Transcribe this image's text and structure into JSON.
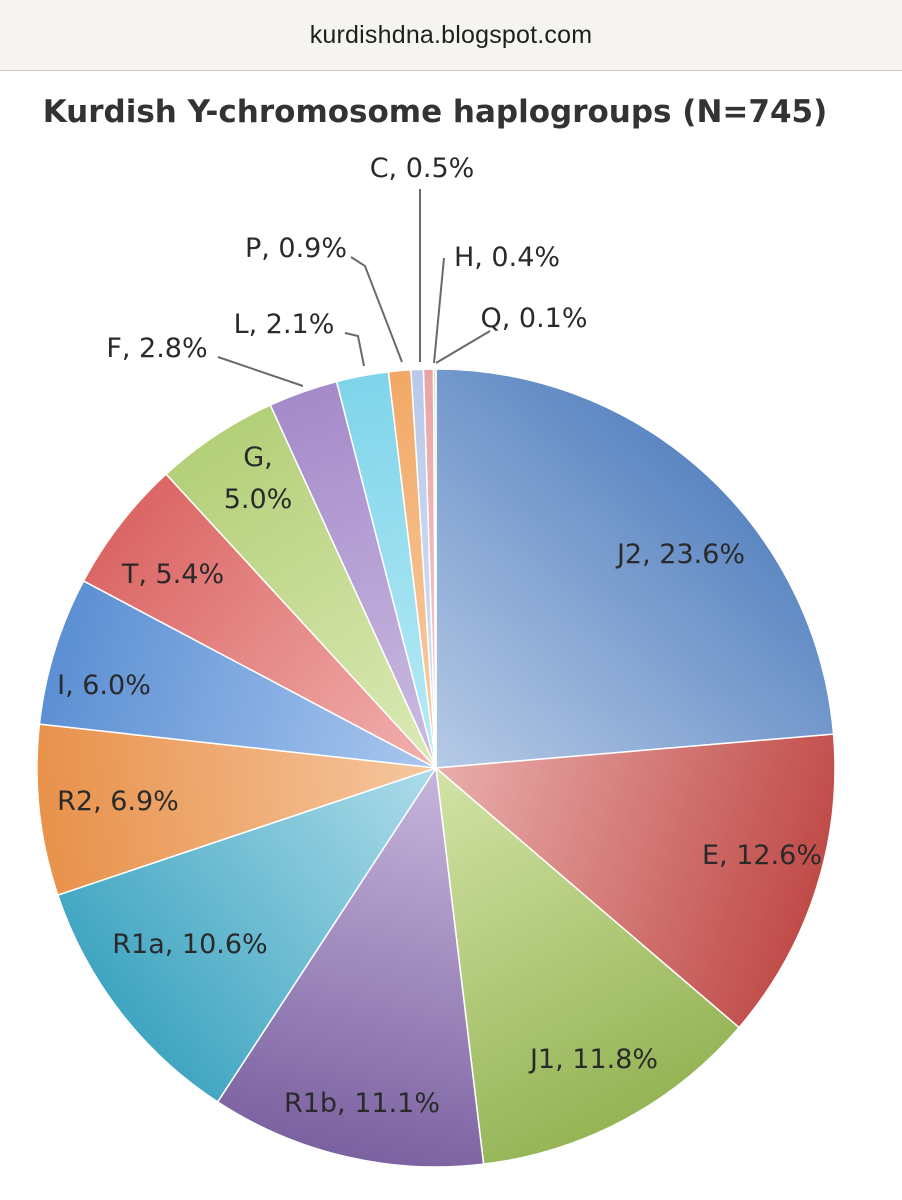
{
  "browser": {
    "url": "kurdishdna.blogspot.com"
  },
  "chart_data": {
    "type": "pie",
    "title": "Kurdish Y-chromosome haplogroups (N=745)",
    "slices": [
      {
        "name": "J2",
        "value": 23.6,
        "label": "J2, 23.6%",
        "color": "#5b86c2",
        "light": "#b6cae6"
      },
      {
        "name": "E",
        "value": 12.6,
        "label": "E, 12.6%",
        "color": "#c04b48",
        "light": "#e9aeac"
      },
      {
        "name": "J1",
        "value": 11.8,
        "label": "J1, 11.8%",
        "color": "#94b455",
        "light": "#d3e3a6"
      },
      {
        "name": "R1b",
        "value": 11.1,
        "label": "R1b, 11.1%",
        "color": "#7b61a0",
        "light": "#c7b6dc"
      },
      {
        "name": "R1a",
        "value": 10.6,
        "label": "R1a, 10.6%",
        "color": "#3fa5c1",
        "light": "#aedcea"
      },
      {
        "name": "R2",
        "value": 6.9,
        "label": "R2, 6.9%",
        "color": "#e8914a",
        "light": "#f6c7a0"
      },
      {
        "name": "I",
        "value": 6.0,
        "label": "I, 6.0%",
        "color": "#5b8fd3",
        "light": "#aac7ef"
      },
      {
        "name": "T",
        "value": 5.4,
        "label": "T, 5.4%",
        "color": "#db6664",
        "light": "#f1b1af"
      },
      {
        "name": "G",
        "value": 5.0,
        "label": [
          "G,",
          "5.0%"
        ],
        "color": "#b3cf78",
        "light": "#dceab6"
      },
      {
        "name": "F",
        "value": 2.8,
        "label": "F, 2.8%",
        "color": "#a58ac9",
        "light": "#cbbce2"
      },
      {
        "name": "L",
        "value": 2.1,
        "label": "L, 2.1%",
        "color": "#7fd4ea",
        "light": "#b9ebf6"
      },
      {
        "name": "P",
        "value": 0.9,
        "label": "P, 0.9%",
        "color": "#f2a865",
        "light": "#f7cfa7"
      },
      {
        "name": "C",
        "value": 0.5,
        "label": "C, 0.5%",
        "color": "#b8c8ea",
        "light": "#dbe4f5"
      },
      {
        "name": "H",
        "value": 0.4,
        "label": "H, 0.4%",
        "color": "#e8a4a4",
        "light": "#f4d1d1"
      },
      {
        "name": "Q",
        "value": 0.1,
        "label": "Q, 0.1%",
        "color": "#c9dca0",
        "light": "#e4edcf"
      }
    ]
  }
}
